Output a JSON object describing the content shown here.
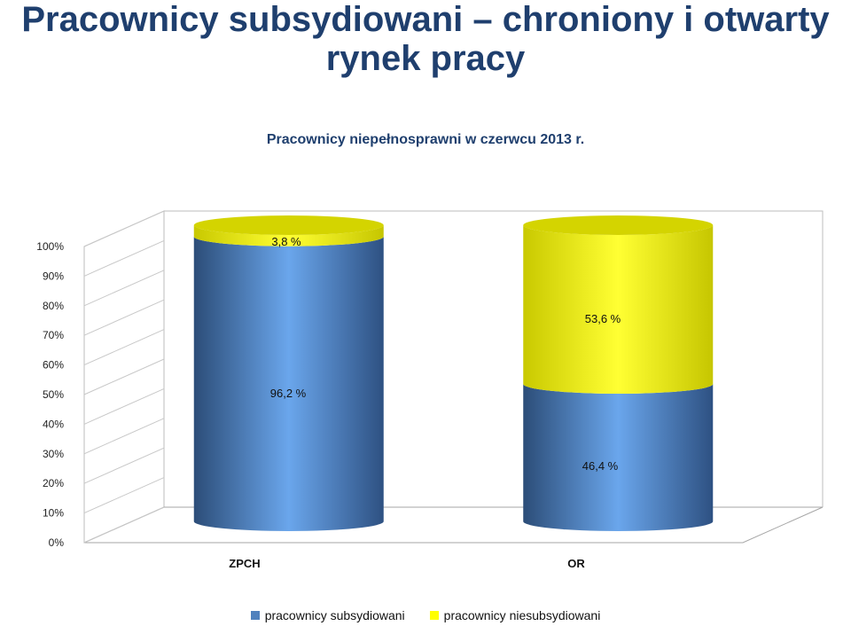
{
  "slide": {
    "title_line1": "Pracownicy subsydiowani – chroniony i otwarty",
    "title_line2": "rynek pracy"
  },
  "chart_data": {
    "type": "bar",
    "stacked": true,
    "percent": true,
    "title": "Pracownicy niepełnosprawni w czerwcu 2013 r.",
    "categories": [
      "ZPCH",
      "OR"
    ],
    "series": [
      {
        "name": "pracownicy subsydiowani",
        "values": [
          96.2,
          46.4
        ],
        "labels": [
          "96,2 %",
          "46,4 %"
        ],
        "color": "#4f81bd"
      },
      {
        "name": "pracownicy niesubsydiowani",
        "values": [
          3.8,
          53.6
        ],
        "labels": [
          "3,8 %",
          "53,6 %"
        ],
        "color": "#ffff00"
      }
    ],
    "y_ticks": [
      "0%",
      "10%",
      "20%",
      "30%",
      "40%",
      "50%",
      "60%",
      "70%",
      "80%",
      "90%",
      "100%"
    ],
    "ylim": [
      0,
      100
    ],
    "legend_position": "bottom",
    "grid": false
  }
}
